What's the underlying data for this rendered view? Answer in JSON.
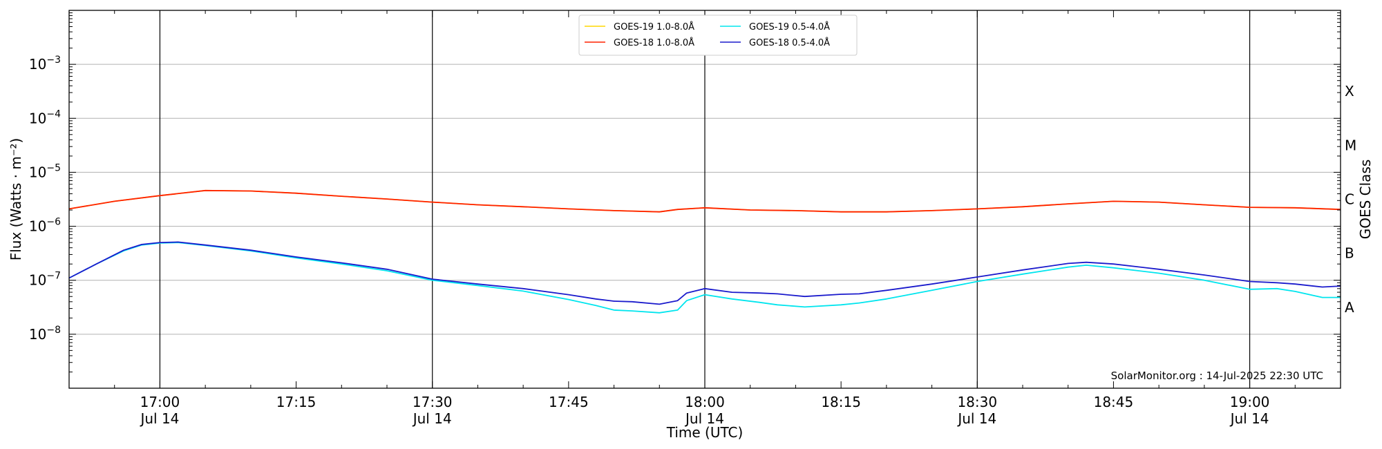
{
  "chart_data": {
    "type": "line",
    "xlabel": "Time (UTC)",
    "ylabel": "Flux (Watts · m⁻²)",
    "y2label": "GOES Class",
    "y_scale": "log",
    "ylim": [
      1e-09,
      0.01
    ],
    "xlim": [
      "16:50",
      "19:10"
    ],
    "grid": "horizontal at decades; vertical black lines at half-hours",
    "legend_position": "top-center",
    "x_ticks": [
      {
        "time": "17:00",
        "label": "17:00",
        "sublabel": "Jul 14"
      },
      {
        "time": "17:15",
        "label": "17:15",
        "sublabel": ""
      },
      {
        "time": "17:30",
        "label": "17:30",
        "sublabel": "Jul 14"
      },
      {
        "time": "17:45",
        "label": "17:45",
        "sublabel": ""
      },
      {
        "time": "18:00",
        "label": "18:00",
        "sublabel": "Jul 14"
      },
      {
        "time": "18:15",
        "label": "18:15",
        "sublabel": ""
      },
      {
        "time": "18:30",
        "label": "18:30",
        "sublabel": "Jul 14"
      },
      {
        "time": "18:45",
        "label": "18:45",
        "sublabel": ""
      },
      {
        "time": "19:00",
        "label": "19:00",
        "sublabel": "Jul 14"
      }
    ],
    "vertical_lines": [
      "17:00",
      "17:30",
      "18:00",
      "18:30",
      "19:00"
    ],
    "y_ticks": [
      {
        "exp": -8,
        "base": "10",
        "sup": "−8"
      },
      {
        "exp": -7,
        "base": "10",
        "sup": "−7"
      },
      {
        "exp": -6,
        "base": "10",
        "sup": "−6"
      },
      {
        "exp": -5,
        "base": "10",
        "sup": "−5"
      },
      {
        "exp": -4,
        "base": "10",
        "sup": "−4"
      },
      {
        "exp": -3,
        "base": "10",
        "sup": "−3"
      }
    ],
    "goes_classes": [
      {
        "label": "A",
        "exp": -7.5
      },
      {
        "label": "B",
        "exp": -6.5
      },
      {
        "label": "C",
        "exp": -5.5
      },
      {
        "label": "M",
        "exp": -4.5
      },
      {
        "label": "X",
        "exp": -3.5
      }
    ],
    "series": [
      {
        "name": "GOES-19 1.0-8.0Å",
        "color": "#ffd700",
        "x": [
          "16:50",
          "16:55",
          "17:00",
          "17:05",
          "17:10",
          "17:15",
          "17:20",
          "17:25",
          "17:30",
          "17:35",
          "17:40",
          "17:45",
          "17:50",
          "17:55",
          "17:57",
          "18:00",
          "18:05",
          "18:10",
          "18:15",
          "18:20",
          "18:25",
          "18:30",
          "18:35",
          "18:40",
          "18:45",
          "18:50",
          "18:55",
          "19:00",
          "19:05",
          "19:10"
        ],
        "y": [
          2.1e-06,
          2.9e-06,
          3.7e-06,
          4.6e-06,
          4.5e-06,
          4.1e-06,
          3.6e-06,
          3.2e-06,
          2.8e-06,
          2.5e-06,
          2.3e-06,
          2.1e-06,
          1.95e-06,
          1.85e-06,
          2.05e-06,
          2.2e-06,
          2e-06,
          1.95e-06,
          1.85e-06,
          1.85e-06,
          1.95e-06,
          2.1e-06,
          2.3e-06,
          2.6e-06,
          2.9e-06,
          2.8e-06,
          2.5e-06,
          2.25e-06,
          2.2e-06,
          2.05e-06
        ]
      },
      {
        "name": "GOES-18 1.0-8.0Å",
        "color": "#ff2000",
        "x": [
          "16:50",
          "16:55",
          "17:00",
          "17:05",
          "17:10",
          "17:15",
          "17:20",
          "17:25",
          "17:30",
          "17:35",
          "17:40",
          "17:45",
          "17:50",
          "17:55",
          "17:57",
          "18:00",
          "18:05",
          "18:10",
          "18:15",
          "18:20",
          "18:25",
          "18:30",
          "18:35",
          "18:40",
          "18:45",
          "18:50",
          "18:55",
          "19:00",
          "19:05",
          "19:10"
        ],
        "y": [
          2.1e-06,
          2.9e-06,
          3.7e-06,
          4.6e-06,
          4.5e-06,
          4.1e-06,
          3.6e-06,
          3.2e-06,
          2.8e-06,
          2.5e-06,
          2.3e-06,
          2.1e-06,
          1.95e-06,
          1.85e-06,
          2.05e-06,
          2.2e-06,
          2e-06,
          1.95e-06,
          1.85e-06,
          1.85e-06,
          1.95e-06,
          2.1e-06,
          2.3e-06,
          2.6e-06,
          2.9e-06,
          2.8e-06,
          2.5e-06,
          2.25e-06,
          2.2e-06,
          2.05e-06
        ]
      },
      {
        "name": "GOES-19 0.5-4.0Å",
        "color": "#00e5ee",
        "x": [
          "16:50",
          "16:53",
          "16:56",
          "16:58",
          "17:00",
          "17:02",
          "17:05",
          "17:10",
          "17:15",
          "17:20",
          "17:25",
          "17:30",
          "17:35",
          "17:40",
          "17:45",
          "17:48",
          "17:50",
          "17:52",
          "17:55",
          "17:57",
          "17:58",
          "18:00",
          "18:03",
          "18:06",
          "18:08",
          "18:11",
          "18:15",
          "18:17",
          "18:20",
          "18:25",
          "18:30",
          "18:35",
          "18:40",
          "18:42",
          "18:45",
          "18:50",
          "18:55",
          "19:00",
          "19:03",
          "19:05",
          "19:08",
          "19:10"
        ],
        "y": [
          1.1e-07,
          2e-07,
          3.5e-07,
          4.5e-07,
          4.9e-07,
          5e-07,
          4.4e-07,
          3.5e-07,
          2.6e-07,
          2e-07,
          1.5e-07,
          1e-07,
          8e-08,
          6.3e-08,
          4.4e-08,
          3.4e-08,
          2.8e-08,
          2.7e-08,
          2.5e-08,
          2.8e-08,
          4.2e-08,
          5.4e-08,
          4.5e-08,
          3.9e-08,
          3.5e-08,
          3.2e-08,
          3.5e-08,
          3.8e-08,
          4.5e-08,
          6.5e-08,
          9.5e-08,
          1.3e-07,
          1.75e-07,
          1.9e-07,
          1.7e-07,
          1.35e-07,
          1e-07,
          6.8e-08,
          7e-08,
          6.2e-08,
          4.8e-08,
          4.8e-08
        ]
      },
      {
        "name": "GOES-18 0.5-4.0Å",
        "color": "#1a1acc",
        "x": [
          "16:50",
          "16:53",
          "16:56",
          "16:58",
          "17:00",
          "17:02",
          "17:05",
          "17:10",
          "17:15",
          "17:20",
          "17:25",
          "17:30",
          "17:35",
          "17:40",
          "17:45",
          "17:48",
          "17:50",
          "17:52",
          "17:55",
          "17:57",
          "17:58",
          "18:00",
          "18:03",
          "18:06",
          "18:08",
          "18:11",
          "18:15",
          "18:17",
          "18:20",
          "18:25",
          "18:30",
          "18:35",
          "18:40",
          "18:42",
          "18:45",
          "18:50",
          "18:55",
          "19:00",
          "19:03",
          "19:05",
          "19:08",
          "19:10"
        ],
        "y": [
          1.1e-07,
          2e-07,
          3.6e-07,
          4.6e-07,
          5e-07,
          5.1e-07,
          4.5e-07,
          3.6e-07,
          2.7e-07,
          2.1e-07,
          1.6e-07,
          1.05e-07,
          8.5e-08,
          7e-08,
          5.4e-08,
          4.5e-08,
          4.1e-08,
          4e-08,
          3.6e-08,
          4.2e-08,
          5.8e-08,
          7e-08,
          6e-08,
          5.8e-08,
          5.6e-08,
          5e-08,
          5.5e-08,
          5.6e-08,
          6.5e-08,
          8.5e-08,
          1.15e-07,
          1.55e-07,
          2.05e-07,
          2.15e-07,
          2e-07,
          1.6e-07,
          1.25e-07,
          9.5e-08,
          9e-08,
          8.5e-08,
          7.5e-08,
          7.8e-08
        ]
      }
    ],
    "credit": "SolarMonitor.org : 14-Jul-2025 22:30 UTC"
  }
}
